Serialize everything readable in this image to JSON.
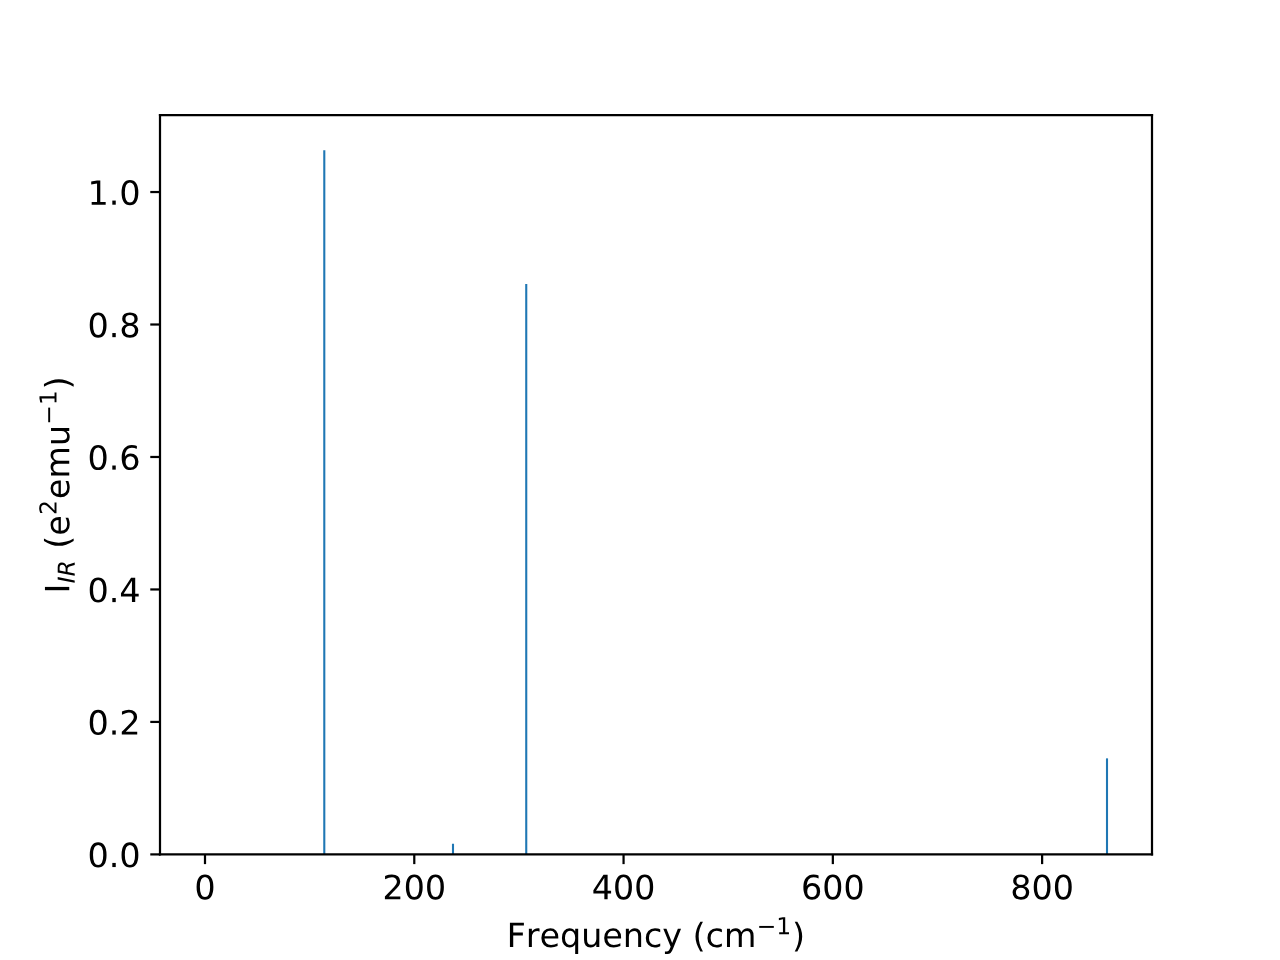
{
  "chart_data": {
    "type": "bar",
    "xlabel": "Frequency (cm$^{−1}$)",
    "ylabel": "I$_{IR}$ (e$^{2}$emu$^{−1}$)",
    "x": [
      114,
      237,
      307,
      862
    ],
    "values": [
      1.063,
      0.016,
      0.861,
      0.145
    ],
    "color": "#1f77b4",
    "xlim": [
      -43,
      905
    ],
    "xticks": [
      0,
      200,
      400,
      600,
      800
    ],
    "ylim": [
      0,
      1.116
    ],
    "yticks": [
      {
        "value": 0,
        "label": "0.0"
      },
      0.2,
      0.4,
      0.6,
      0.8,
      {
        "value": 1,
        "label": "1.0"
      }
    ],
    "grid": false
  }
}
